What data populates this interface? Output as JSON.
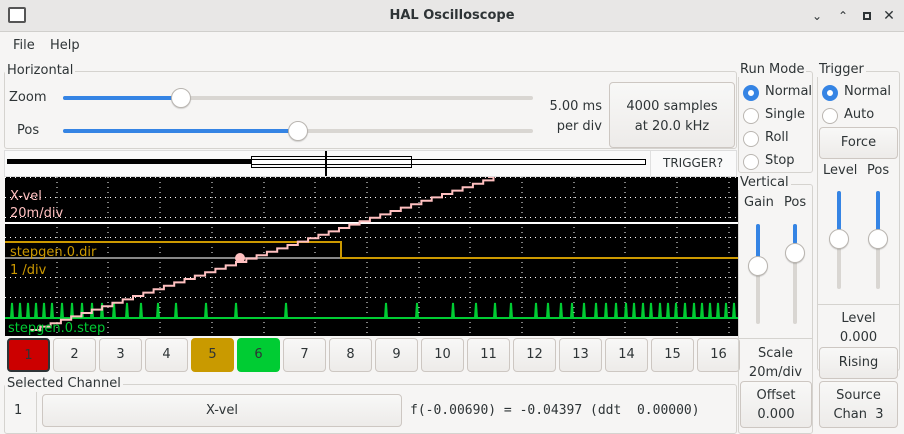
{
  "window": {
    "title": "HAL Oscilloscope",
    "controls": [
      "minimize",
      "maximize-restore",
      "restore",
      "close"
    ]
  },
  "menu": [
    "File",
    "Help"
  ],
  "horizontal": {
    "label": "Horizontal",
    "zoom_label": "Zoom",
    "pos_label": "Pos",
    "zoom_value": 0.25,
    "pos_value": 0.5,
    "rate_line1": "5.00 ms",
    "rate_line2": "per div",
    "samples_line1": "4000 samples",
    "samples_line2": "at 20.0 kHz",
    "trigger_status": "TRIGGER?"
  },
  "scope": {
    "channels": [
      {
        "name": "X-vel",
        "scale": "20m/div",
        "color": "#ffc0c0"
      },
      {
        "name": "stepgen.0.dir",
        "scale": "1 /div",
        "color": "#cc9900"
      },
      {
        "name": "stepgen.0.step",
        "color": "#00cc33"
      }
    ],
    "background": "#000000"
  },
  "channel_buttons": [
    {
      "label": "1",
      "color": "#cc0000"
    },
    {
      "label": "2"
    },
    {
      "label": "3"
    },
    {
      "label": "4"
    },
    {
      "label": "5",
      "color": "#c99a00"
    },
    {
      "label": "6",
      "color": "#00cc33"
    },
    {
      "label": "7"
    },
    {
      "label": "8"
    },
    {
      "label": "9"
    },
    {
      "label": "10"
    },
    {
      "label": "11"
    },
    {
      "label": "12"
    },
    {
      "label": "13"
    },
    {
      "label": "14"
    },
    {
      "label": "15"
    },
    {
      "label": "16"
    }
  ],
  "selected_channel": {
    "label": "Selected Channel",
    "number": "1",
    "name": "X-vel",
    "readout": "f(-0.00690) = -0.04397 (ddt  0.00000)"
  },
  "run_mode": {
    "label": "Run Mode",
    "options": [
      "Normal",
      "Single",
      "Roll",
      "Stop"
    ],
    "selected": "Normal"
  },
  "vertical": {
    "label": "Vertical",
    "gain_label": "Gain",
    "pos_label": "Pos",
    "gain_value": 0.35,
    "pos_value": 0.2,
    "scale_label": "Scale",
    "scale_value": "20m/div",
    "offset_label": "Offset",
    "offset_value": "0.000"
  },
  "trigger": {
    "label": "Trigger",
    "options": [
      "Normal",
      "Auto"
    ],
    "selected": "Normal",
    "force_label": "Force",
    "level_label": "Level",
    "pos_label": "Pos",
    "level_slider": 0.5,
    "pos_slider": 0.5,
    "level_text_label": "Level",
    "level_value": "0.000",
    "edge": "Rising",
    "source_line1": "Source",
    "source_line2": "Chan  3"
  }
}
